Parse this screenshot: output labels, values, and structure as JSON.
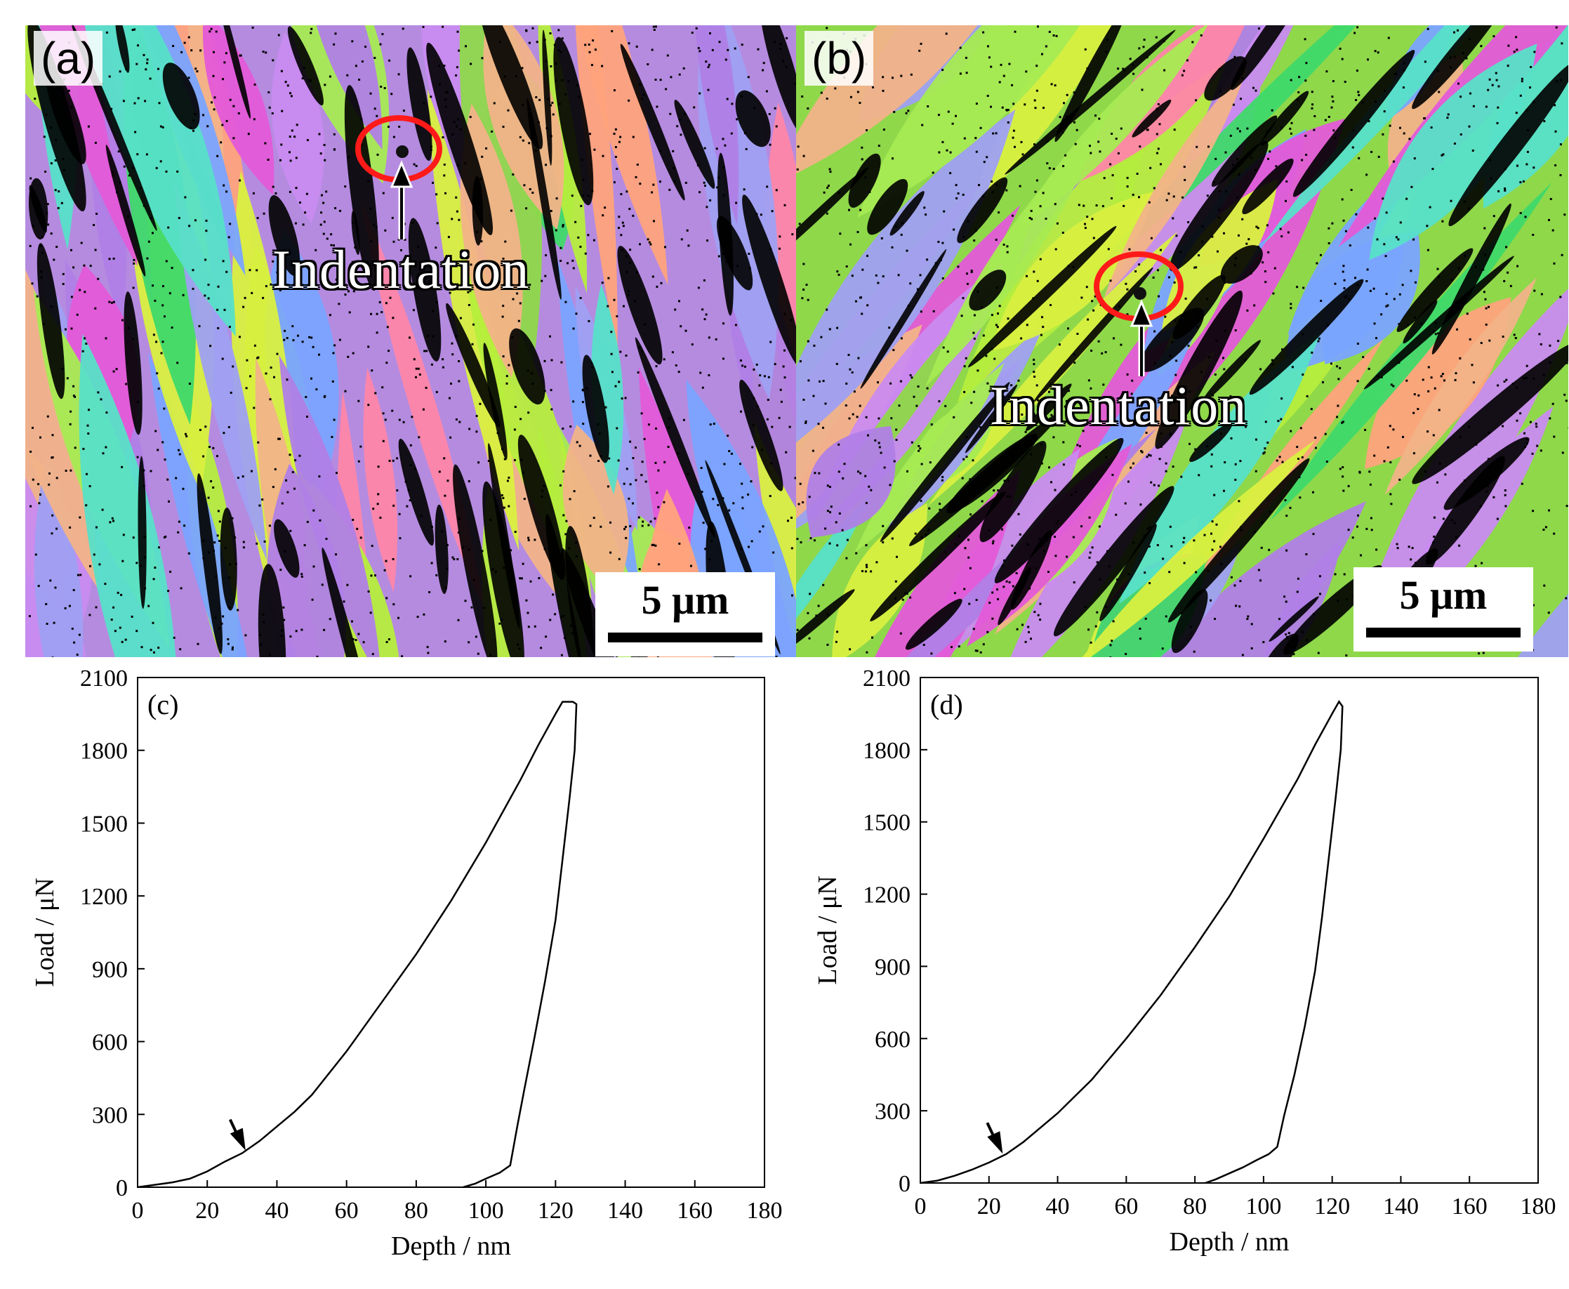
{
  "panels": {
    "a": {
      "letter": "(a)",
      "annotation": "Indentation",
      "scalebar": "5 μm"
    },
    "b": {
      "letter": "(b)",
      "annotation": "Indentation",
      "scalebar": "5 μm"
    }
  },
  "colors": {
    "ebsd_palette": [
      "#b07fe6",
      "#c98bf0",
      "#9fa0f2",
      "#8fd84a",
      "#b6ee3c",
      "#3fd96a",
      "#ff86a8",
      "#ffa37c",
      "#f2b388",
      "#e45ad8",
      "#7aa4ff",
      "#d9f040",
      "#57e0c8",
      "#a7eb52"
    ],
    "indent_marker": "#ff1a1a",
    "curve": "#000000"
  },
  "chart_data": [
    {
      "type": "line",
      "panel_label": "(c)",
      "xlabel": "Depth / nm",
      "ylabel": "Load / μN",
      "xlim": [
        0,
        180
      ],
      "ylim": [
        0,
        2100
      ],
      "xticks": [
        0,
        20,
        40,
        60,
        80,
        100,
        120,
        140,
        160,
        180
      ],
      "yticks": [
        0,
        300,
        600,
        900,
        1200,
        1500,
        1800,
        2100
      ],
      "grid": false,
      "series": [
        {
          "x": [
            0,
            10,
            15,
            20,
            25,
            30,
            35,
            40,
            45,
            50,
            60,
            70,
            80,
            90,
            100,
            110,
            115,
            120,
            122,
            125,
            126,
            125.5,
            124,
            122,
            120,
            117,
            114,
            111,
            109,
            107,
            104,
            100,
            97,
            93.5
          ],
          "y": [
            0,
            20,
            35,
            65,
            105,
            140,
            190,
            250,
            310,
            380,
            560,
            760,
            960,
            1180,
            1420,
            1680,
            1820,
            1950,
            2000,
            2000,
            1990,
            1800,
            1600,
            1350,
            1100,
            850,
            620,
            400,
            250,
            90,
            60,
            35,
            15,
            0
          ]
        }
      ],
      "annotations": [
        {
          "type": "arrow",
          "x": 31,
          "y": 140
        }
      ]
    },
    {
      "type": "line",
      "panel_label": "(d)",
      "xlabel": "Depth / nm",
      "ylabel": "Load / μN",
      "xlim": [
        0,
        180
      ],
      "ylim": [
        0,
        2100
      ],
      "xticks": [
        0,
        20,
        40,
        60,
        80,
        100,
        120,
        140,
        160,
        180
      ],
      "yticks": [
        0,
        300,
        600,
        900,
        1200,
        1500,
        1800,
        2100
      ],
      "grid": false,
      "series": [
        {
          "x": [
            0,
            5,
            10,
            15,
            20,
            25,
            30,
            40,
            50,
            60,
            70,
            80,
            90,
            100,
            110,
            115,
            120,
            122,
            123,
            122.5,
            121,
            119,
            117,
            115,
            112,
            109,
            106,
            104,
            101.5,
            98,
            94,
            90,
            86,
            83
          ],
          "y": [
            0,
            10,
            30,
            55,
            85,
            120,
            170,
            290,
            430,
            600,
            780,
            980,
            1190,
            1430,
            1680,
            1820,
            1950,
            2000,
            1980,
            1800,
            1600,
            1350,
            1100,
            880,
            650,
            450,
            280,
            150,
            120,
            95,
            65,
            40,
            15,
            0
          ]
        }
      ],
      "annotations": [
        {
          "type": "arrow",
          "x": 24,
          "y": 110
        }
      ]
    }
  ]
}
